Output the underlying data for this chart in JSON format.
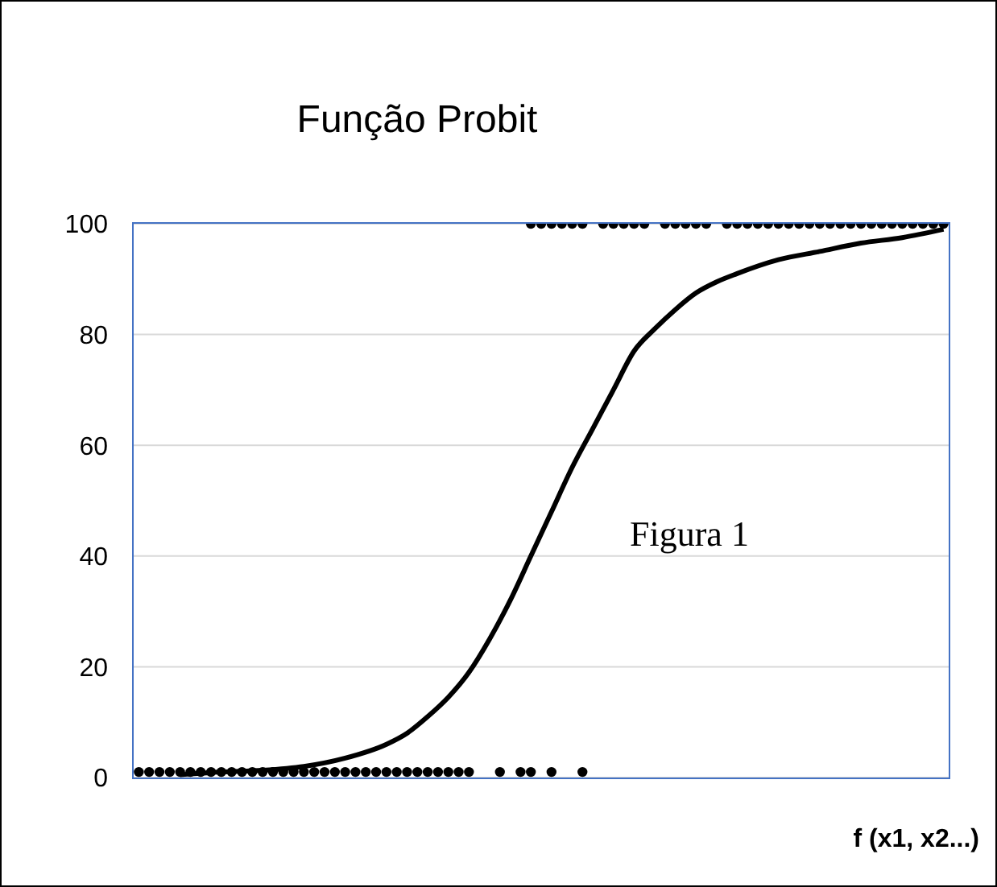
{
  "chart_data": {
    "type": "scatter",
    "title": "Função Probit",
    "xlabel": "f (x1, x2...)",
    "annotations": [
      "Figura 1"
    ],
    "categories": [
      null,
      null,
      null,
      null,
      null,
      null,
      null,
      null,
      null,
      null,
      null,
      null,
      null,
      null,
      null,
      null,
      null,
      null,
      null,
      null,
      null,
      null,
      null,
      null,
      null,
      null,
      null,
      null,
      null,
      null,
      null,
      null,
      null,
      null,
      null,
      null,
      null,
      null,
      null,
      null,
      null,
      null,
      null,
      null,
      null,
      null,
      null,
      null,
      null,
      null,
      null,
      null,
      null,
      null,
      null,
      null,
      null,
      null,
      null,
      null,
      null,
      null,
      null,
      null,
      null,
      null,
      null,
      null,
      null,
      null,
      null,
      null,
      null,
      null,
      null,
      null,
      null,
      null,
      null
    ],
    "ylim": [
      0,
      100
    ],
    "yticks": [
      0,
      20,
      40,
      60,
      80,
      100
    ],
    "grid": "y",
    "tick_labels": "y",
    "series": [
      {
        "type": "scatter",
        "marker": "circle",
        "color": "#000000",
        "values": [
          1,
          1,
          1,
          1,
          1,
          1,
          1,
          1,
          1,
          1,
          1,
          1,
          1,
          1,
          1,
          1,
          1,
          1,
          1,
          1,
          1,
          1,
          1,
          1,
          1,
          1,
          1,
          1,
          1,
          1,
          1,
          1,
          1,
          null,
          null,
          1,
          null,
          1,
          1,
          null,
          1,
          null,
          null,
          1,
          null,
          null,
          null,
          null,
          null,
          null,
          null,
          null,
          null,
          null,
          null,
          null,
          null,
          null,
          null,
          null,
          null,
          null,
          null,
          null,
          null,
          null,
          null,
          null,
          null,
          null,
          null,
          null,
          null,
          null,
          null,
          null,
          null,
          null,
          null
        ]
      },
      {
        "type": "scatter",
        "marker": "circle",
        "color": "#000000",
        "values": [
          null,
          null,
          null,
          null,
          null,
          null,
          null,
          null,
          null,
          null,
          null,
          null,
          null,
          null,
          null,
          null,
          null,
          null,
          null,
          null,
          null,
          null,
          null,
          null,
          null,
          null,
          null,
          null,
          null,
          null,
          null,
          null,
          null,
          null,
          null,
          null,
          null,
          null,
          100,
          100,
          100,
          100,
          100,
          100,
          null,
          100,
          100,
          100,
          100,
          100,
          null,
          100,
          100,
          100,
          100,
          100,
          null,
          100,
          100,
          100,
          100,
          100,
          100,
          100,
          100,
          100,
          100,
          100,
          100,
          100,
          100,
          100,
          100,
          100,
          100,
          100,
          100,
          100,
          100
        ]
      },
      {
        "type": "line",
        "color": "#000000",
        "values": [
          null,
          null,
          null,
          null,
          0.5,
          null,
          null,
          null,
          1,
          null,
          null,
          null,
          1.3,
          null,
          null,
          null,
          2,
          null,
          null,
          null,
          3.5,
          null,
          null,
          null,
          6,
          null,
          8,
          null,
          11,
          null,
          14.5,
          null,
          19,
          null,
          25,
          null,
          32,
          null,
          40,
          null,
          48,
          null,
          56,
          null,
          63,
          null,
          70,
          null,
          77,
          null,
          81,
          null,
          84.5,
          null,
          87.5,
          null,
          89.5,
          null,
          91,
          null,
          null,
          null,
          93.5,
          null,
          null,
          null,
          95,
          null,
          null,
          null,
          96.5,
          null,
          null,
          null,
          97.5,
          null,
          null,
          null,
          99
        ]
      }
    ]
  }
}
